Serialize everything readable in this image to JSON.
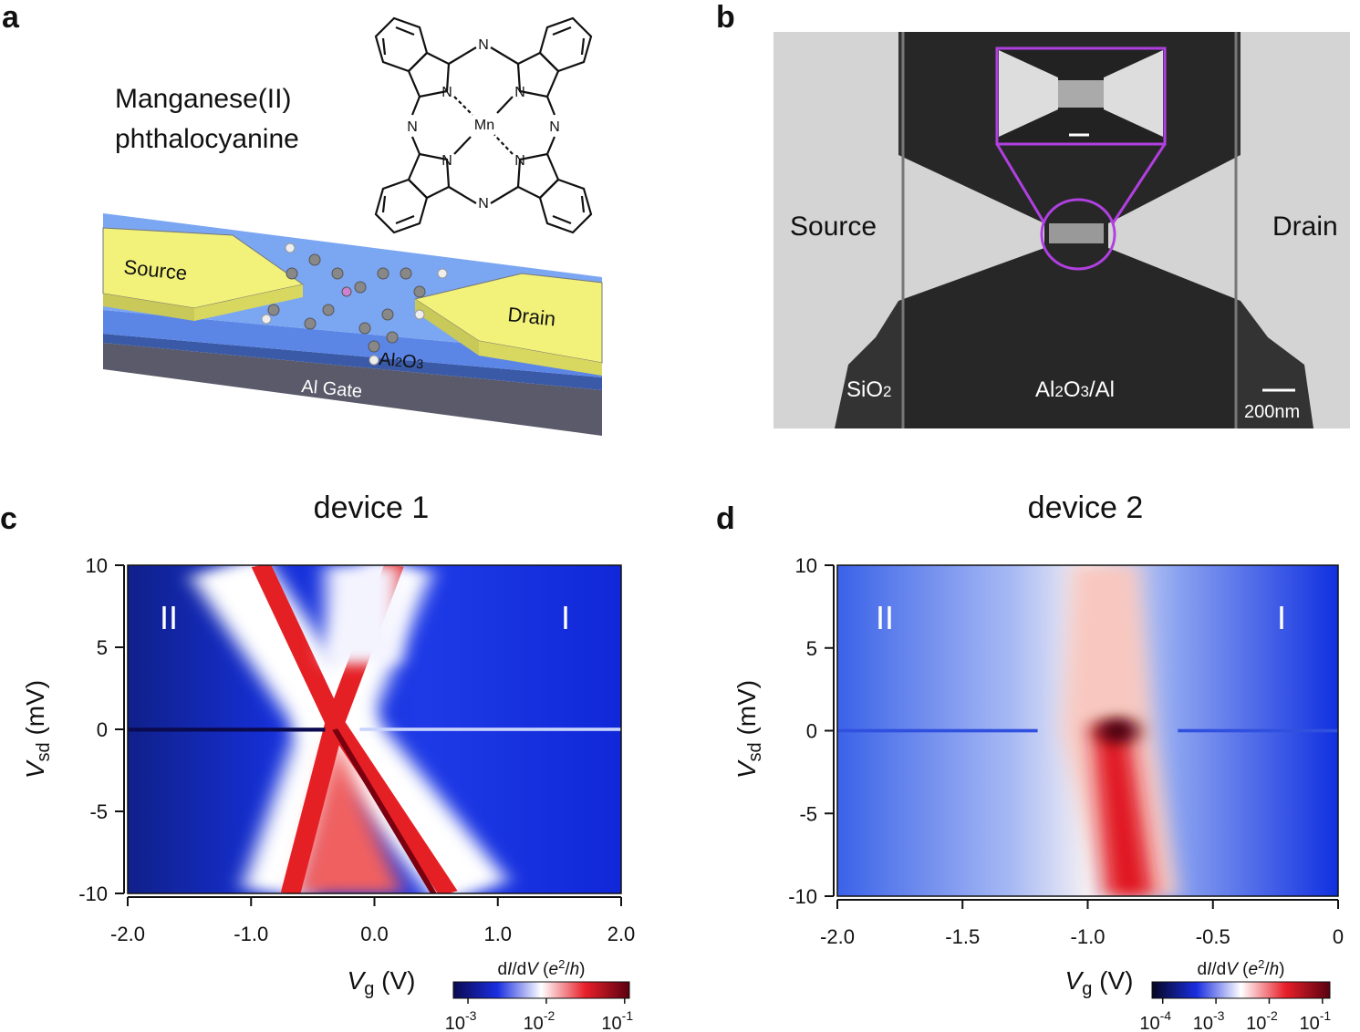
{
  "panels": {
    "a": {
      "label": "a",
      "molecule_name": [
        "Manganese(II)",
        "phthalocyanine"
      ],
      "atoms": {
        "n": "N",
        "mn": "Mn"
      },
      "source": "Source",
      "drain": "Drain",
      "oxide": [
        "Al",
        "2",
        "O",
        "3"
      ],
      "gate": "Al Gate"
    },
    "b": {
      "label": "b",
      "source": "Source",
      "drain": "Drain",
      "sio2": [
        "SiO",
        "2"
      ],
      "oxide": [
        "Al",
        "2",
        "O",
        "3",
        "/Al"
      ],
      "scale_bar": "200nm"
    }
  },
  "chart_data": [
    {
      "panel_label": "c",
      "type": "heatmap",
      "title": "device 1",
      "x_label": [
        "V",
        "g",
        " (V)"
      ],
      "y_label": [
        "V",
        "sd",
        " (mV)"
      ],
      "xlim": [
        -2,
        2
      ],
      "xticks": [
        {
          "value": -2,
          "label": "-2.0"
        },
        {
          "value": -1,
          "label": "-1.0"
        },
        {
          "value": 0,
          "label": "0.0"
        },
        {
          "value": 1,
          "label": "1.0"
        },
        {
          "value": 2,
          "label": "2.0"
        }
      ],
      "ylim": [
        -10,
        10
      ],
      "yticks": [
        -10,
        -5,
        0,
        5,
        10
      ],
      "annotations": [
        "II",
        "I"
      ],
      "colorbar": {
        "label": [
          "d",
          "I",
          "/d",
          "V",
          " (",
          "e",
          "2",
          "/",
          "h",
          ")"
        ],
        "log": true,
        "lim": [
          0.00065,
          0.115
        ],
        "ticks": [
          {
            "value": 0.001,
            "label": "10",
            "exponent": "-3"
          },
          {
            "value": 0.01,
            "label": "10",
            "exponent": "-2"
          },
          {
            "value": 0.1,
            "label": "10",
            "exponent": "-1"
          }
        ],
        "colors": [
          "#0a0a50",
          "#1a2ee0",
          "#ffffff",
          "#e8202a",
          "#5a0010"
        ]
      }
    },
    {
      "panel_label": "d",
      "type": "heatmap",
      "title": "device 2",
      "x_label": [
        "V",
        "g",
        " (V)"
      ],
      "y_label": [
        "V",
        "sd",
        " (mV)"
      ],
      "xlim": [
        -2,
        0
      ],
      "xticks": [
        {
          "value": -2,
          "label": "-2.0"
        },
        {
          "value": -1.5,
          "label": "-1.5"
        },
        {
          "value": -1,
          "label": "-1.0"
        },
        {
          "value": -0.5,
          "label": "-0.5"
        },
        0
      ],
      "ylim": [
        -10,
        10
      ],
      "yticks": [
        -10,
        -5,
        0,
        5,
        10
      ],
      "annotations": [
        "II",
        "I"
      ],
      "colorbar": {
        "label": [
          "d",
          "I",
          "/d",
          "V",
          " (",
          "e",
          "2",
          "/",
          "h",
          ")"
        ],
        "log": true,
        "lim": [
          6.3e-05,
          0.138
        ],
        "ticks": [
          {
            "value": 0.0001,
            "label": "10",
            "exponent": "-4"
          },
          {
            "value": 0.001,
            "label": "10",
            "exponent": "-3"
          },
          {
            "value": 0.01,
            "label": "10",
            "exponent": "-2"
          },
          {
            "value": 0.1,
            "label": "10",
            "exponent": "-1"
          }
        ],
        "colors": [
          "#060620",
          "#1a2ee0",
          "#ffffff",
          "#e8202a",
          "#5a0010"
        ]
      }
    }
  ]
}
